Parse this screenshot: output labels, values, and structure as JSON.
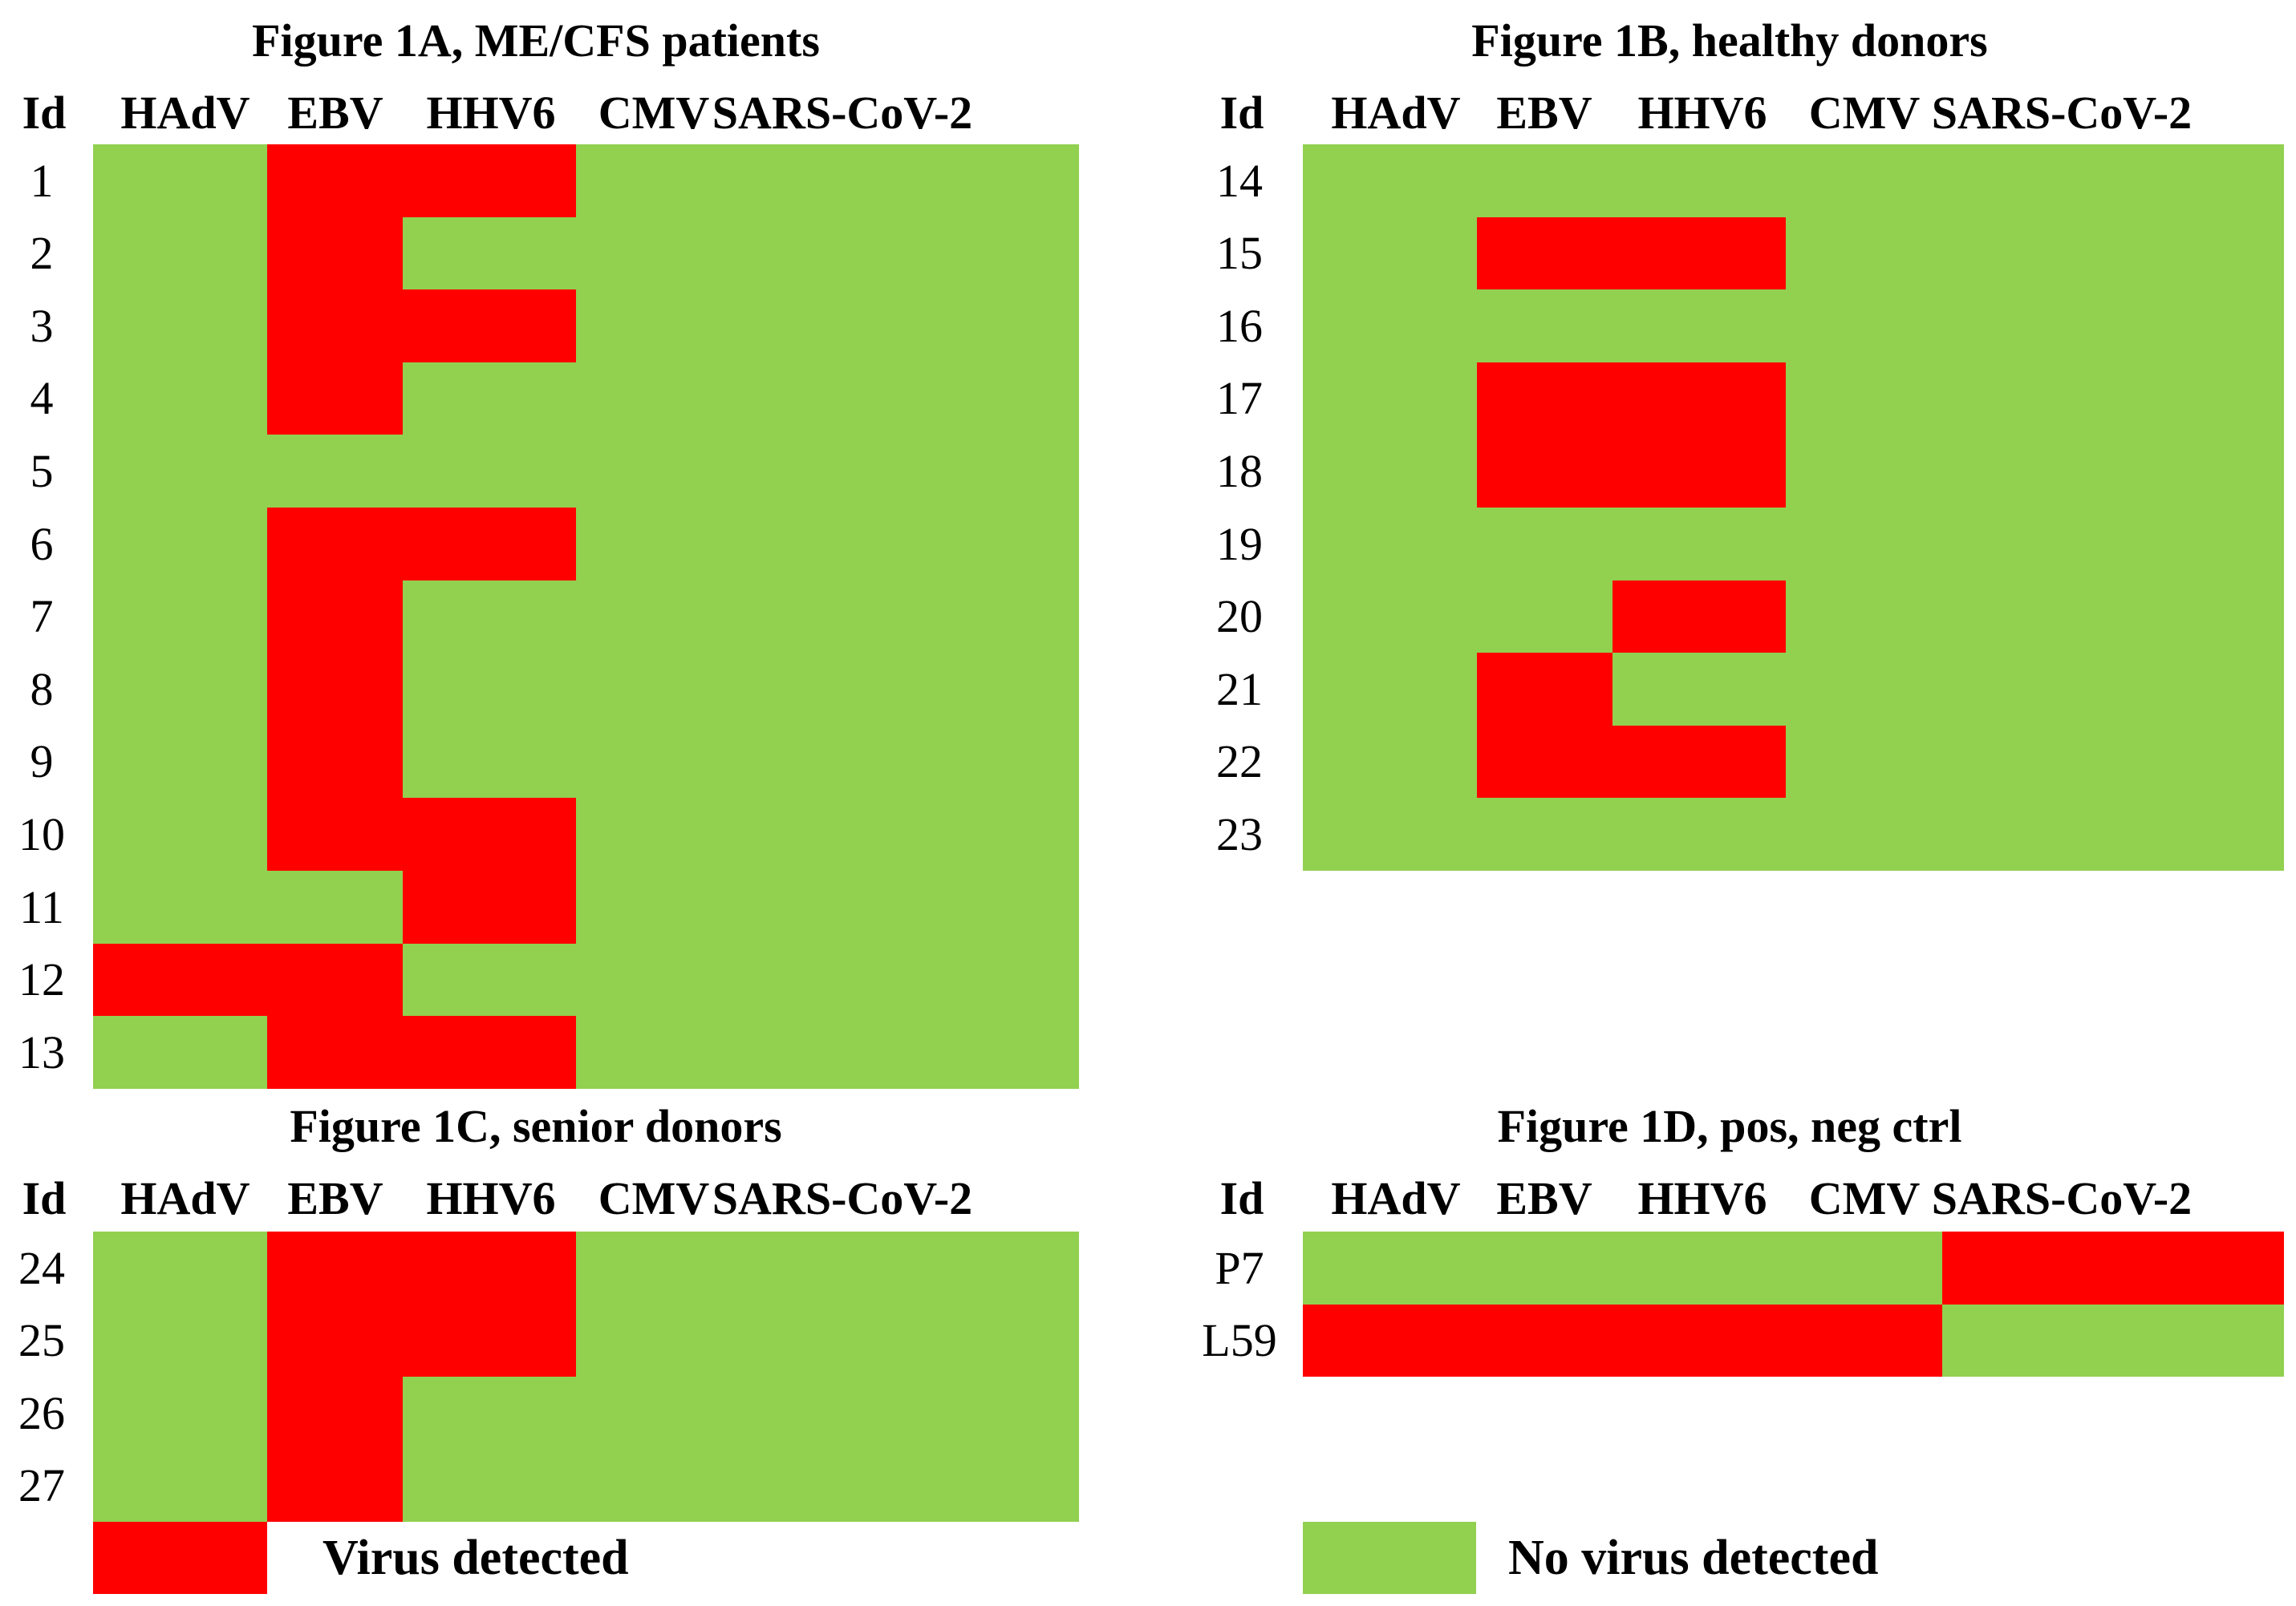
{
  "colors": {
    "detected": "#ff0000",
    "not_detected": "#92d050"
  },
  "chart_data": [
    {
      "type": "heatmap",
      "title": "Figure 1A, ME/CFS patients",
      "id_header": "Id",
      "columns": [
        "HAdV",
        "EBV",
        "HHV6",
        "CMV",
        "SARS-CoV-2"
      ],
      "rows": [
        "1",
        "2",
        "3",
        "4",
        "5",
        "6",
        "7",
        "8",
        "9",
        "10",
        "11",
        "12",
        "13"
      ],
      "values": [
        [
          0,
          1,
          1,
          0,
          0
        ],
        [
          0,
          1,
          0,
          0,
          0
        ],
        [
          0,
          1,
          1,
          0,
          0
        ],
        [
          0,
          1,
          0,
          0,
          0
        ],
        [
          0,
          0,
          0,
          0,
          0
        ],
        [
          0,
          1,
          1,
          0,
          0
        ],
        [
          0,
          1,
          0,
          0,
          0
        ],
        [
          0,
          1,
          0,
          0,
          0
        ],
        [
          0,
          1,
          0,
          0,
          0
        ],
        [
          0,
          1,
          1,
          0,
          0
        ],
        [
          0,
          0,
          1,
          0,
          0
        ],
        [
          1,
          1,
          0,
          0,
          0
        ],
        [
          0,
          1,
          1,
          0,
          0
        ]
      ]
    },
    {
      "type": "heatmap",
      "title": "Figure 1B, healthy donors",
      "id_header": "Id",
      "columns": [
        "HAdV",
        "EBV",
        "HHV6",
        "CMV",
        "SARS-CoV-2"
      ],
      "rows": [
        "14",
        "15",
        "16",
        "17",
        "18",
        "19",
        "20",
        "21",
        "22",
        "23"
      ],
      "values": [
        [
          0,
          0,
          0,
          0,
          0
        ],
        [
          0,
          1,
          1,
          0,
          0
        ],
        [
          0,
          0,
          0,
          0,
          0
        ],
        [
          0,
          1,
          1,
          0,
          0
        ],
        [
          0,
          1,
          1,
          0,
          0
        ],
        [
          0,
          0,
          0,
          0,
          0
        ],
        [
          0,
          0,
          1,
          0,
          0
        ],
        [
          0,
          1,
          0,
          0,
          0
        ],
        [
          0,
          1,
          1,
          0,
          0
        ],
        [
          0,
          0,
          0,
          0,
          0
        ]
      ]
    },
    {
      "type": "heatmap",
      "title": "Figure 1C, senior donors",
      "id_header": "Id",
      "columns": [
        "HAdV",
        "EBV",
        "HHV6",
        "CMV",
        "SARS-CoV-2"
      ],
      "rows": [
        "24",
        "25",
        "26",
        "27"
      ],
      "values": [
        [
          0,
          1,
          1,
          0,
          0
        ],
        [
          0,
          1,
          1,
          0,
          0
        ],
        [
          0,
          1,
          0,
          0,
          0
        ],
        [
          0,
          1,
          0,
          0,
          0
        ]
      ]
    },
    {
      "type": "heatmap",
      "title": "Figure 1D, pos, neg ctrl",
      "id_header": "Id",
      "columns": [
        "HAdV",
        "EBV",
        "HHV6",
        "CMV",
        "SARS-CoV-2"
      ],
      "rows": [
        "P7",
        "L59"
      ],
      "values": [
        [
          0,
          0,
          0,
          0,
          1
        ],
        [
          1,
          1,
          1,
          1,
          0
        ]
      ]
    }
  ],
  "legend": {
    "detected_label": "Virus detected",
    "not_detected_label": "No virus detected"
  }
}
